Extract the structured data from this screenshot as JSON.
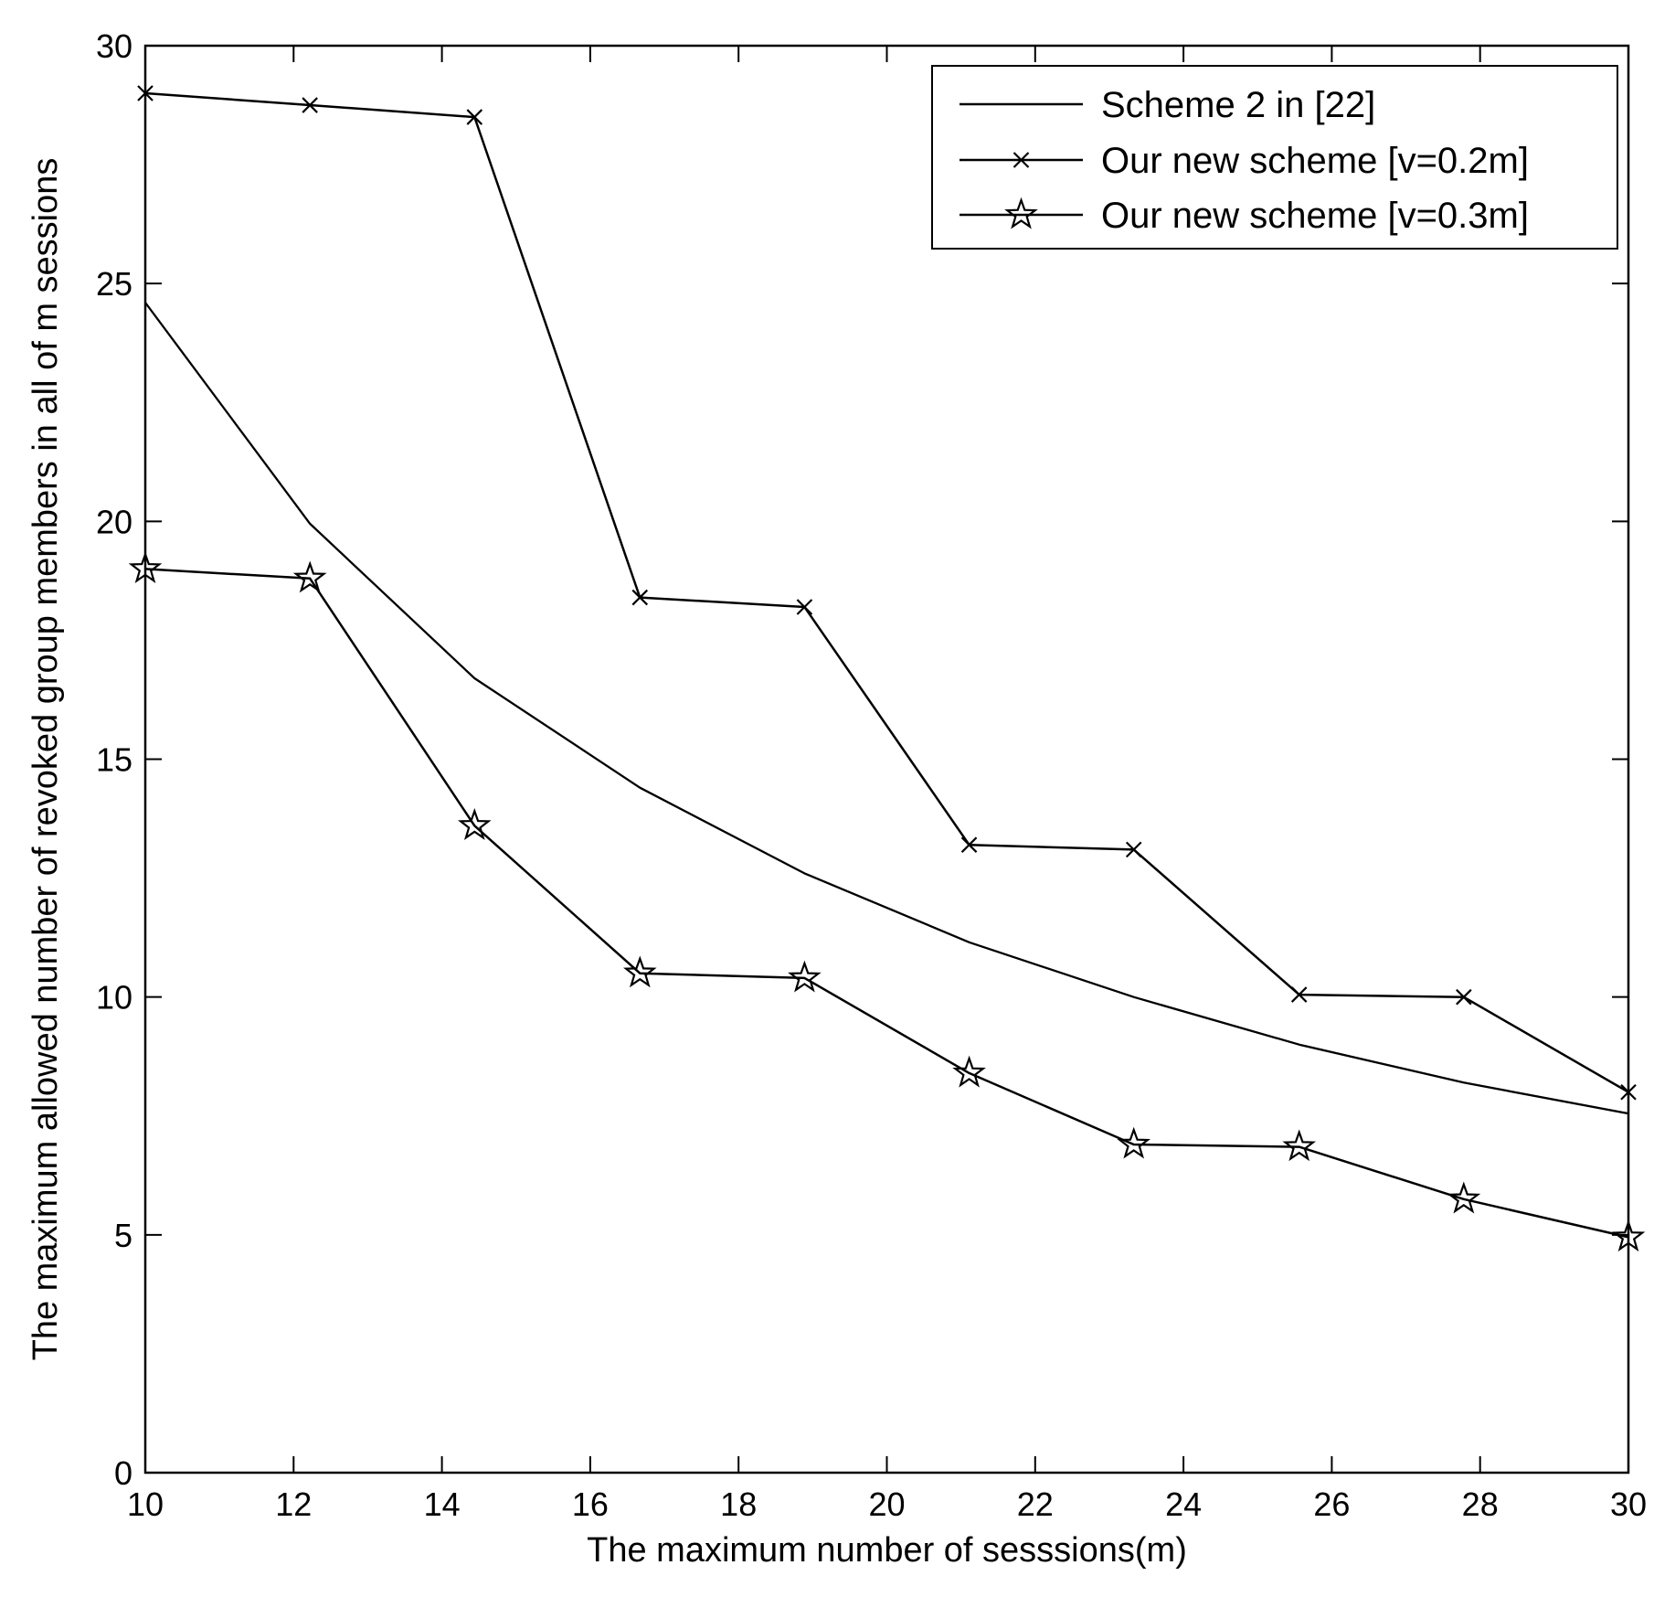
{
  "chart_data": {
    "type": "line",
    "title": "",
    "xlabel": "The maximum number of sesssions(m)",
    "ylabel": "The maximum allowed number of revoked group members in all of m sessions",
    "xlim": [
      10,
      30
    ],
    "ylim": [
      0,
      30
    ],
    "xticks": [
      10,
      12,
      14,
      16,
      18,
      20,
      22,
      24,
      26,
      28,
      30
    ],
    "yticks": [
      0,
      5,
      10,
      15,
      20,
      25,
      30
    ],
    "grid": false,
    "legend_position": "top-right",
    "x": [
      10,
      12.22,
      14.44,
      16.67,
      18.89,
      21.11,
      23.33,
      25.56,
      27.78,
      30
    ],
    "series": [
      {
        "name": "Scheme 2 in [22]",
        "marker": "none",
        "values": [
          24.6,
          19.95,
          16.7,
          14.4,
          12.6,
          11.15,
          10.0,
          9.0,
          8.2,
          7.55
        ]
      },
      {
        "name": "Our new scheme [v=0.2m]",
        "marker": "x",
        "values": [
          29.0,
          28.75,
          28.5,
          18.4,
          18.2,
          13.2,
          13.1,
          10.05,
          10.0,
          8.0
        ]
      },
      {
        "name": "Our new scheme [v=0.3m]",
        "marker": "star",
        "values": [
          19.0,
          18.8,
          13.6,
          10.5,
          10.4,
          8.4,
          6.9,
          6.85,
          5.75,
          4.95
        ]
      }
    ]
  }
}
